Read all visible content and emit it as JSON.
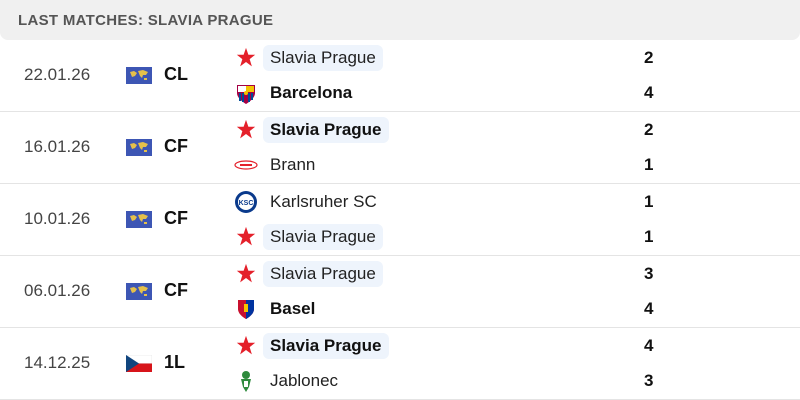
{
  "header": {
    "title": "LAST MATCHES: SLAVIA PRAGUE"
  },
  "matches": [
    {
      "date": "22.01.26",
      "competition": "CL",
      "comp_icon": "world-map-icon",
      "home": {
        "name": "Slavia Prague",
        "score": "2",
        "logo": "slavia-star-icon",
        "highlight": true,
        "winner": false
      },
      "away": {
        "name": "Barcelona",
        "score": "4",
        "logo": "barcelona-crest-icon",
        "highlight": false,
        "winner": true
      }
    },
    {
      "date": "16.01.26",
      "competition": "CF",
      "comp_icon": "world-map-icon",
      "home": {
        "name": "Slavia Prague",
        "score": "2",
        "logo": "slavia-star-icon",
        "highlight": true,
        "winner": true
      },
      "away": {
        "name": "Brann",
        "score": "1",
        "logo": "brann-logo-icon",
        "highlight": false,
        "winner": false
      }
    },
    {
      "date": "10.01.26",
      "competition": "CF",
      "comp_icon": "world-map-icon",
      "home": {
        "name": "Karlsruher SC",
        "score": "1",
        "logo": "ksc-logo-icon",
        "highlight": false,
        "winner": false
      },
      "away": {
        "name": "Slavia Prague",
        "score": "1",
        "logo": "slavia-star-icon",
        "highlight": true,
        "winner": false
      }
    },
    {
      "date": "06.01.26",
      "competition": "CF",
      "comp_icon": "world-map-icon",
      "home": {
        "name": "Slavia Prague",
        "score": "3",
        "logo": "slavia-star-icon",
        "highlight": true,
        "winner": false
      },
      "away": {
        "name": "Basel",
        "score": "4",
        "logo": "basel-crest-icon",
        "highlight": false,
        "winner": true
      }
    },
    {
      "date": "14.12.25",
      "competition": "1L",
      "comp_icon": "czech-flag-icon",
      "home": {
        "name": "Slavia Prague",
        "score": "4",
        "logo": "slavia-star-icon",
        "highlight": true,
        "winner": true
      },
      "away": {
        "name": "Jablonec",
        "score": "3",
        "logo": "jablonec-crest-icon",
        "highlight": false,
        "winner": false
      }
    }
  ]
}
